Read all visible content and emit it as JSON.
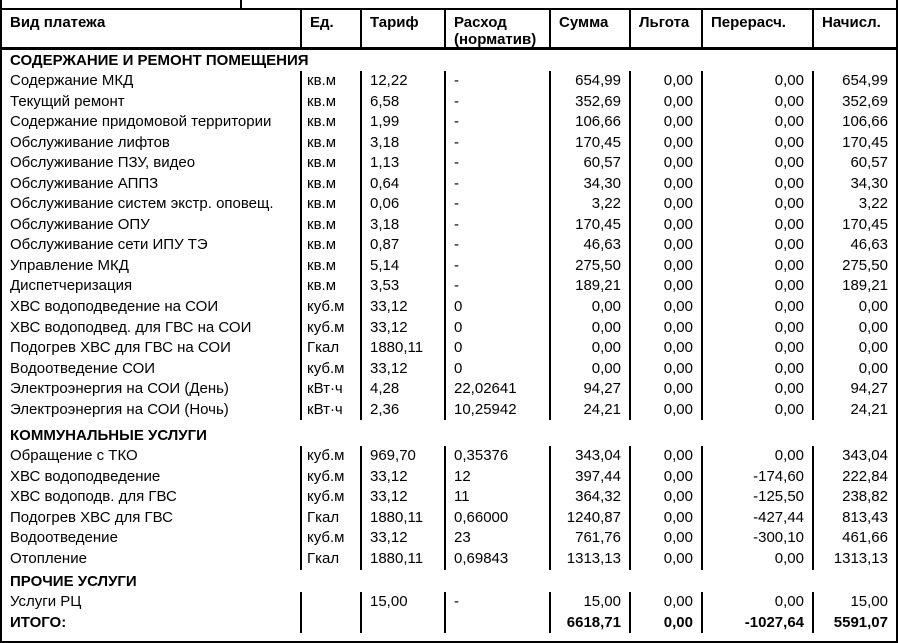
{
  "table": {
    "columns": [
      {
        "key": "name",
        "label": "Вид платежа"
      },
      {
        "key": "unit",
        "label": "Ед."
      },
      {
        "key": "tariff",
        "label": "Тариф"
      },
      {
        "key": "consumption",
        "label": "Расход (норматив)"
      },
      {
        "key": "sum",
        "label": "Сумма"
      },
      {
        "key": "benefit",
        "label": "Льгота"
      },
      {
        "key": "recalc",
        "label": "Перерасч."
      },
      {
        "key": "accrued",
        "label": "Начисл."
      }
    ],
    "sections": [
      {
        "title": "СОДЕРЖАНИЕ И РЕМОНТ ПОМЕЩЕНИЯ",
        "rows": [
          [
            "Содержание МКД",
            "кв.м",
            "12,22",
            "-",
            "654,99",
            "0,00",
            "0,00",
            "654,99"
          ],
          [
            "Текущий ремонт",
            "кв.м",
            "6,58",
            "-",
            "352,69",
            "0,00",
            "0,00",
            "352,69"
          ],
          [
            "Содержание придомовой территории",
            "кв.м",
            "1,99",
            "-",
            "106,66",
            "0,00",
            "0,00",
            "106,66"
          ],
          [
            "Обслуживание лифтов",
            "кв.м",
            "3,18",
            "-",
            "170,45",
            "0,00",
            "0,00",
            "170,45"
          ],
          [
            "Обслуживание ПЗУ, видео",
            "кв.м",
            "1,13",
            "-",
            "60,57",
            "0,00",
            "0,00",
            "60,57"
          ],
          [
            "Обслуживание АППЗ",
            "кв.м",
            "0,64",
            "-",
            "34,30",
            "0,00",
            "0,00",
            "34,30"
          ],
          [
            "Обслуживание систем экстр. оповещ.",
            "кв.м",
            "0,06",
            "-",
            "3,22",
            "0,00",
            "0,00",
            "3,22"
          ],
          [
            "Обслуживание ОПУ",
            "кв.м",
            "3,18",
            "-",
            "170,45",
            "0,00",
            "0,00",
            "170,45"
          ],
          [
            "Обслуживание сети ИПУ ТЭ",
            "кв.м",
            "0,87",
            "-",
            "46,63",
            "0,00",
            "0,00",
            "46,63"
          ],
          [
            "Управление МКД",
            "кв.м",
            "5,14",
            "-",
            "275,50",
            "0,00",
            "0,00",
            "275,50"
          ],
          [
            "Диспетчеризация",
            "кв.м",
            "3,53",
            "-",
            "189,21",
            "0,00",
            "0,00",
            "189,21"
          ],
          [
            "ХВС водоподведение на СОИ",
            "куб.м",
            "33,12",
            "0",
            "0,00",
            "0,00",
            "0,00",
            "0,00"
          ],
          [
            "ХВС водоподвед. для ГВС на СОИ",
            "куб.м",
            "33,12",
            "0",
            "0,00",
            "0,00",
            "0,00",
            "0,00"
          ],
          [
            "Подогрев ХВС для ГВС на СОИ",
            "Гкал",
            "1880,11",
            "0",
            "0,00",
            "0,00",
            "0,00",
            "0,00"
          ],
          [
            "Водоотведение СОИ",
            "куб.м",
            "33,12",
            "0",
            "0,00",
            "0,00",
            "0,00",
            "0,00"
          ],
          [
            "Электроэнергия на СОИ (День)",
            "кВт·ч",
            "4,28",
            "22,02641",
            "94,27",
            "0,00",
            "0,00",
            "94,27"
          ],
          [
            "Электроэнергия на СОИ (Ночь)",
            "кВт·ч",
            "2,36",
            "10,25942",
            "24,21",
            "0,00",
            "0,00",
            "24,21"
          ]
        ]
      },
      {
        "title": "КОММУНАЛЬНЫЕ УСЛУГИ",
        "rows": [
          [
            "Обращение с ТКО",
            "куб.м",
            "969,70",
            "0,35376",
            "343,04",
            "0,00",
            "0,00",
            "343,04"
          ],
          [
            "ХВС водоподведение",
            "куб.м",
            "33,12",
            "12",
            "397,44",
            "0,00",
            "-174,60",
            "222,84"
          ],
          [
            "ХВС водоподв. для ГВС",
            "куб.м",
            "33,12",
            "11",
            "364,32",
            "0,00",
            "-125,50",
            "238,82"
          ],
          [
            "Подогрев ХВС для ГВС",
            "Гкал",
            "1880,11",
            "0,66000",
            "1240,87",
            "0,00",
            "-427,44",
            "813,43"
          ],
          [
            "Водоотведение",
            "куб.м",
            "33,12",
            "23",
            "761,76",
            "0,00",
            "-300,10",
            "461,66"
          ],
          [
            "Отопление",
            "Гкал",
            "1880,11",
            "0,69843",
            "1313,13",
            "0,00",
            "0,00",
            "1313,13"
          ]
        ]
      },
      {
        "title": "ПРОЧИЕ УСЛУГИ",
        "rows": [
          [
            "Услуги РЦ",
            "",
            "15,00",
            "-",
            "15,00",
            "0,00",
            "0,00",
            "15,00"
          ]
        ]
      }
    ],
    "total_row": [
      "ИТОГО:",
      "",
      "",
      "",
      "6618,71",
      "0,00",
      "-1027,64",
      "5591,07"
    ],
    "colors": {
      "border": "#000000",
      "background": "#ffffff",
      "text": "#000000"
    }
  }
}
